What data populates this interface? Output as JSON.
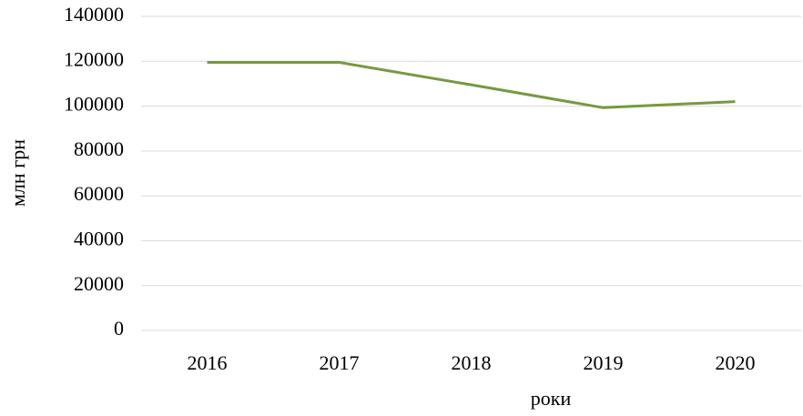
{
  "chart_data": {
    "type": "line",
    "x_label": "роки",
    "y_label": "млн грн",
    "categories": [
      "2016",
      "2017",
      "2018",
      "2019",
      "2020"
    ],
    "values": [
      119500,
      119500,
      109500,
      99300,
      102000
    ],
    "color": "#77993f",
    "ylim": [
      0,
      140000
    ],
    "yticks": [
      0,
      20000,
      40000,
      60000,
      80000,
      100000,
      120000,
      140000
    ],
    "grid": true
  }
}
